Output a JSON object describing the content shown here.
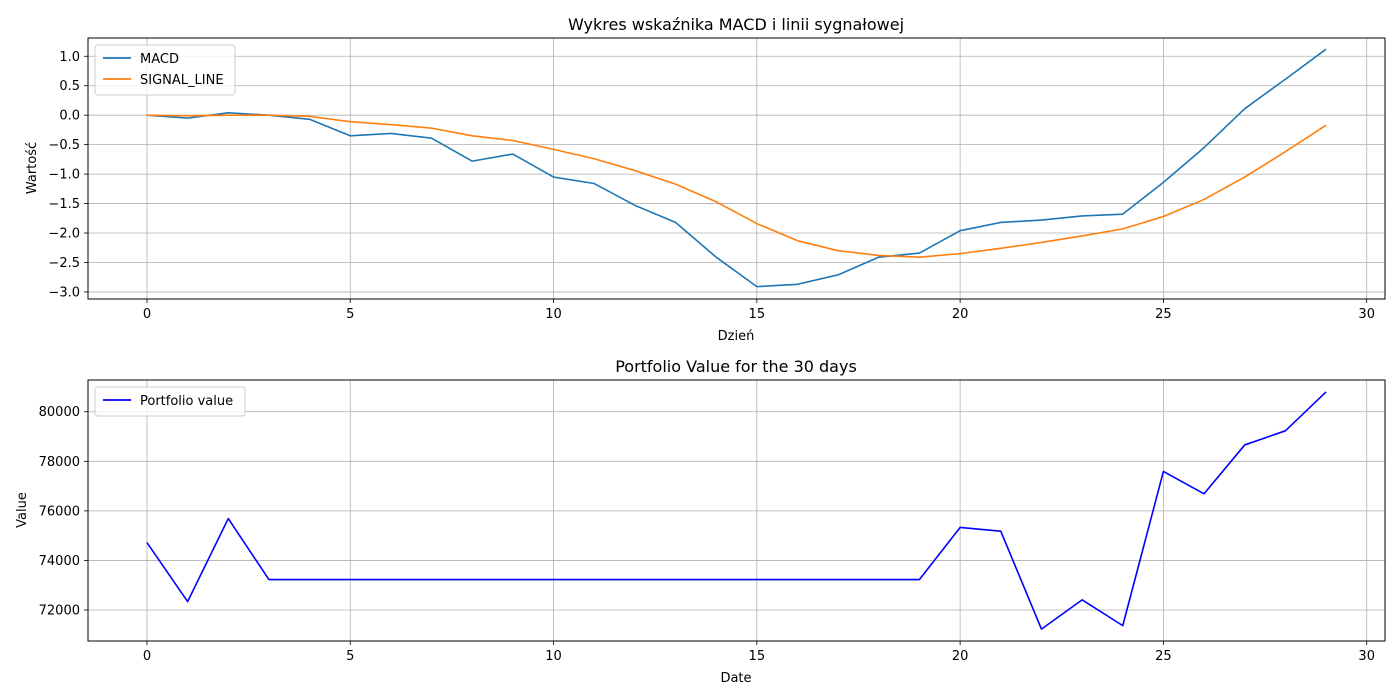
{
  "chart_data": [
    {
      "type": "line",
      "title": "Wykres wskaźnika MACD i linii sygnałowej",
      "xlabel": "Dzień",
      "ylabel": "Wartość",
      "xlim": [
        -1.45,
        30.45
      ],
      "ylim": [
        -3.12,
        1.31
      ],
      "xticks": [
        0,
        5,
        10,
        15,
        20,
        25,
        30
      ],
      "yticks": [
        -3.0,
        -2.5,
        -2.0,
        -1.5,
        -1.0,
        -0.5,
        0.0,
        0.5,
        1.0
      ],
      "yticks_labels": [
        "−3.0",
        "−2.5",
        "−2.0",
        "−1.5",
        "−1.0",
        "−0.5",
        "0.0",
        "0.5",
        "1.0"
      ],
      "grid": true,
      "legend": "upper-left",
      "x": [
        0,
        1,
        2,
        3,
        4,
        5,
        6,
        7,
        8,
        9,
        10,
        11,
        12,
        13,
        14,
        15,
        16,
        17,
        18,
        19,
        20,
        21,
        22,
        23,
        24,
        25,
        26,
        27,
        28,
        29
      ],
      "series": [
        {
          "name": "MACD",
          "color": "#1f77b4",
          "values": [
            0.0,
            -0.05,
            0.04,
            0.0,
            -0.07,
            -0.35,
            -0.31,
            -0.39,
            -0.78,
            -0.66,
            -1.05,
            -1.16,
            -1.53,
            -1.82,
            -2.41,
            -2.91,
            -2.87,
            -2.71,
            -2.41,
            -2.34,
            -1.96,
            -1.82,
            -1.78,
            -1.71,
            -1.68,
            -1.14,
            -0.55,
            0.11,
            0.61,
            1.12
          ]
        },
        {
          "name": "SIGNAL_LINE",
          "color": "#ff7f0e",
          "values": [
            0.0,
            -0.01,
            0.0,
            0.0,
            -0.02,
            -0.11,
            -0.16,
            -0.22,
            -0.35,
            -0.43,
            -0.58,
            -0.74,
            -0.94,
            -1.17,
            -1.47,
            -1.84,
            -2.13,
            -2.3,
            -2.38,
            -2.41,
            -2.35,
            -2.26,
            -2.16,
            -2.05,
            -1.93,
            -1.72,
            -1.43,
            -1.05,
            -0.62,
            -0.17
          ]
        }
      ]
    },
    {
      "type": "line",
      "title": "Portfolio Value for the 30 days",
      "xlabel": "Date",
      "ylabel": "Value",
      "xlim": [
        -1.45,
        30.45
      ],
      "ylim": [
        70750,
        81280
      ],
      "xticks": [
        0,
        5,
        10,
        15,
        20,
        25,
        30
      ],
      "yticks": [
        72000,
        74000,
        76000,
        78000,
        80000
      ],
      "yticks_labels": [
        "72000",
        "74000",
        "76000",
        "78000",
        "80000"
      ],
      "grid": true,
      "legend": "upper-left",
      "x": [
        0,
        1,
        2,
        3,
        4,
        5,
        6,
        7,
        8,
        9,
        10,
        11,
        12,
        13,
        14,
        15,
        16,
        17,
        18,
        19,
        20,
        21,
        22,
        23,
        24,
        25,
        26,
        27,
        28,
        29
      ],
      "series": [
        {
          "name": "Portfolio value",
          "color": "#0000ff",
          "values": [
            74720,
            72340,
            75690,
            73230,
            73230,
            73230,
            73230,
            73230,
            73230,
            73230,
            73230,
            73230,
            73230,
            73230,
            73230,
            73230,
            73230,
            73230,
            73230,
            73230,
            75330,
            75180,
            71230,
            72410,
            71370,
            77590,
            76690,
            78660,
            79230,
            80800
          ]
        }
      ]
    }
  ]
}
